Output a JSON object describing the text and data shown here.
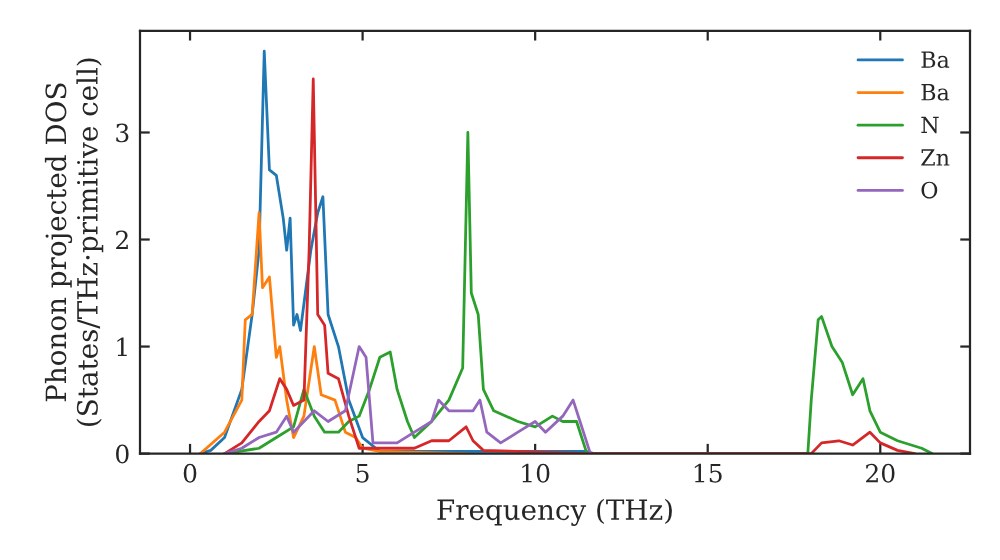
{
  "chart_data": {
    "type": "line",
    "xlabel": "Frequency (THz)",
    "ylabel": "Phonon projected DOS\n(States/THz·primitive cell)",
    "xlim": [
      -1.45,
      22.6
    ],
    "ylim": [
      0,
      3.95
    ],
    "xticks": [
      0,
      5,
      10,
      15,
      20
    ],
    "yticks": [
      0,
      1,
      2,
      3
    ],
    "grid": false,
    "legend": "top right",
    "series": [
      {
        "name": "Ba",
        "color": "#1f77b4",
        "x": [
          0.3,
          0.6,
          1.0,
          1.5,
          1.8,
          2.0,
          2.15,
          2.3,
          2.5,
          2.7,
          2.8,
          2.9,
          3.0,
          3.1,
          3.2,
          3.5,
          3.7,
          3.85,
          4.0,
          4.3,
          4.6,
          5.0,
          5.5,
          8.0,
          11.5,
          11.7
        ],
        "values": [
          0,
          0.03,
          0.15,
          0.6,
          1.3,
          1.9,
          3.76,
          2.65,
          2.6,
          2.2,
          1.9,
          2.2,
          1.2,
          1.3,
          1.15,
          1.9,
          2.25,
          2.4,
          1.3,
          1.0,
          0.5,
          0.15,
          0.02,
          0.02,
          0.02,
          0
        ]
      },
      {
        "name": "Ba",
        "color": "#ff7f0e",
        "x": [
          0.3,
          1.0,
          1.5,
          1.6,
          1.8,
          2.0,
          2.1,
          2.3,
          2.5,
          2.6,
          2.8,
          3.0,
          3.3,
          3.6,
          3.8,
          4.2,
          4.5,
          4.8,
          5.0,
          5.5,
          8.0
        ],
        "values": [
          0,
          0.2,
          0.5,
          1.25,
          1.3,
          2.25,
          1.55,
          1.65,
          0.9,
          1.0,
          0.5,
          0.15,
          0.35,
          1.0,
          0.55,
          0.5,
          0.2,
          0.15,
          0.05,
          0.02,
          0
        ]
      },
      {
        "name": "N",
        "color": "#2ca02c",
        "x": [
          1.0,
          2.0,
          2.5,
          3.0,
          3.3,
          3.6,
          3.9,
          4.3,
          4.6,
          4.9,
          5.2,
          5.5,
          5.8,
          6.0,
          6.3,
          6.5,
          7.0,
          7.5,
          7.9,
          8.05,
          8.15,
          8.35,
          8.5,
          8.8,
          9.5,
          10.0,
          10.5,
          10.8,
          11.2,
          11.5,
          17.9,
          18.0,
          18.2,
          18.3,
          18.6,
          18.9,
          19.2,
          19.5,
          19.7,
          20.0,
          20.5,
          21.2,
          21.5
        ],
        "values": [
          0,
          0.05,
          0.15,
          0.25,
          0.6,
          0.35,
          0.2,
          0.2,
          0.3,
          0.35,
          0.6,
          0.9,
          0.95,
          0.6,
          0.3,
          0.15,
          0.3,
          0.5,
          0.8,
          3.0,
          1.5,
          1.3,
          0.6,
          0.4,
          0.3,
          0.25,
          0.35,
          0.3,
          0.3,
          0,
          0,
          0.5,
          1.25,
          1.28,
          1.0,
          0.85,
          0.55,
          0.7,
          0.4,
          0.2,
          0.12,
          0.05,
          0
        ]
      },
      {
        "name": "Zn",
        "color": "#d62728",
        "x": [
          1.0,
          1.5,
          2.0,
          2.3,
          2.6,
          2.8,
          3.0,
          3.3,
          3.45,
          3.57,
          3.7,
          3.9,
          4.0,
          4.3,
          4.6,
          4.9,
          5.5,
          6.5,
          7.0,
          7.5,
          8.0,
          8.2,
          8.5,
          11.5,
          18.0,
          18.3,
          18.8,
          19.2,
          19.7,
          20.0,
          20.5,
          21.0
        ],
        "values": [
          0,
          0.1,
          0.3,
          0.4,
          0.7,
          0.6,
          0.45,
          0.5,
          1.9,
          3.5,
          1.3,
          1.2,
          0.75,
          0.7,
          0.35,
          0.05,
          0.05,
          0.05,
          0.12,
          0.12,
          0.25,
          0.12,
          0.03,
          0,
          0,
          0.1,
          0.12,
          0.08,
          0.2,
          0.1,
          0.03,
          0
        ]
      },
      {
        "name": "O",
        "color": "#9467bd",
        "x": [
          1.0,
          1.5,
          2.0,
          2.5,
          2.8,
          3.0,
          3.3,
          3.6,
          4.0,
          4.5,
          4.9,
          5.1,
          5.3,
          6.0,
          6.5,
          7.0,
          7.2,
          7.5,
          8.2,
          8.4,
          8.6,
          9.0,
          9.5,
          10.0,
          10.3,
          10.8,
          11.1,
          11.3,
          11.6
        ],
        "values": [
          0,
          0.05,
          0.15,
          0.2,
          0.35,
          0.2,
          0.3,
          0.4,
          0.3,
          0.4,
          1.0,
          0.9,
          0.1,
          0.1,
          0.2,
          0.3,
          0.5,
          0.4,
          0.4,
          0.5,
          0.2,
          0.1,
          0.2,
          0.3,
          0.2,
          0.35,
          0.5,
          0.3,
          0
        ]
      }
    ]
  }
}
